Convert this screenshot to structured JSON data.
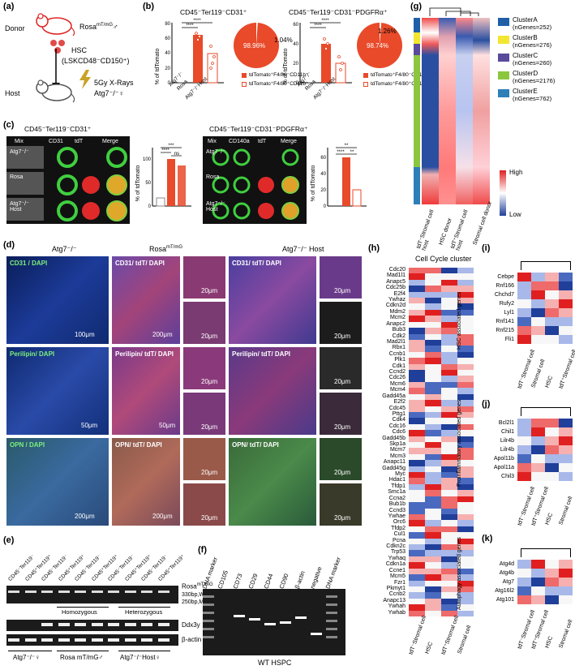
{
  "panels": {
    "a": "(a)",
    "b": "(b)",
    "c": "(c)",
    "d": "(d)",
    "e": "(e)",
    "f": "(f)",
    "g": "(g)",
    "h": "(h)",
    "i": "(i)",
    "j": "(j)",
    "k": "(k)"
  },
  "a": {
    "donor": "Donor",
    "donor_strain": "Rosa",
    "donor_sup": "mT/mG",
    "donor_sex": "♂",
    "hsc": "HSC",
    "hsc_markers": "(LSKCD48⁻CD150⁺)",
    "host": "Host",
    "xray": "5Gy X-Rays",
    "host_strain": "Atg7⁻/⁻♀"
  },
  "b": {
    "title1": "CD45⁻Ter119⁻CD31⁺",
    "title2": "CD45⁻Ter119⁻CD31⁻PDGFRα⁺",
    "ylabel": "% of tdTomato",
    "stars": "****",
    "xcats": [
      "Atg7⁻/⁻",
      "Rosa",
      "Atg7⁻/⁻Host"
    ],
    "pie1_big": "98.96%",
    "pie1_small": "1.04%",
    "pie2_big": "98.74%",
    "pie2_small": "1.26%",
    "legend_a": "tdTomato⁺F4/80⁻CD11b⁻",
    "legend_b": "tdTomato⁺F4/80⁺CD11b⁺"
  },
  "c": {
    "title1": "CD45⁻Ter119⁻CD31⁺",
    "title2": "CD45⁻Ter119⁻CD31⁻PDGFRα⁺",
    "cols1": [
      "Mix",
      "CD31",
      "tdT",
      "Merge"
    ],
    "cols2": [
      "Mix",
      "CD140a",
      "tdT",
      "Merge"
    ],
    "rows": [
      "Atg7⁻/⁻",
      "Rosa",
      "Atg7⁻/⁻ Host"
    ],
    "ylabel": "% of tdTomato",
    "sig1": [
      "***",
      "****",
      "ns"
    ],
    "sig2": [
      "**",
      "****",
      "**"
    ]
  },
  "d": {
    "col1": "Atg7⁻/⁻",
    "col2": "Rosa",
    "col2_sup": "mT/mG",
    "col3": "Atg7⁻/⁻ Host",
    "row1": "CD31 / DAPI",
    "row2": "Perilipin/ DAPI",
    "row3": "OPN / DAPI",
    "row1b": "CD31/ tdT/ DAPI",
    "row2b": "Perilipin/ tdT/ DAPI",
    "row3b": "OPN/ tdT/ DAPI",
    "scales": [
      "100μm",
      "200μm",
      "20μm",
      "20μm",
      "20μm",
      "20μm",
      "50μm",
      "50μm",
      "20μm",
      "20μm",
      "20μm",
      "20μm",
      "200μm",
      "200μm",
      "20μm",
      "20μm",
      "20μm",
      "20μm"
    ]
  },
  "e": {
    "lanes": [
      "CD45⁻Ter119⁻",
      "CD45⁺Ter119⁺",
      "CD45⁻Ter119⁻",
      "CD45⁺Ter119⁺",
      "CD45⁻Ter119⁻",
      "CD45⁺Ter119⁺",
      "CD45⁻Ter119⁻",
      "CD45⁺Ter119⁺",
      "CD45⁻Ter119⁻",
      "CD45⁺Ter119⁺"
    ],
    "gene1": "Rosa",
    "gene1_sup": "mT/mG",
    "wt": "330bp,WT",
    "mut": "250bp,Mut",
    "homo": "Homozygous",
    "hetero": "Heterozygous",
    "gene2": "Ddx3y",
    "gene3": "β-actin",
    "groups": [
      "Atg7⁻/⁻♀",
      "Rosa mT/mG♂",
      "Atg7⁻/⁻Host♀"
    ]
  },
  "f": {
    "lanes": [
      "DNA marker",
      "CD105",
      "CD73",
      "CD29",
      "CD44",
      "CD90",
      "β-actin",
      "negative",
      "DNA marker"
    ],
    "caption": "WT HSPC"
  },
  "g": {
    "clusters": [
      {
        "name": "ClusterA",
        "count": "(nGenes=252)",
        "color": "#1f5fa8"
      },
      {
        "name": "ClusterB",
        "count": "(nGenes=276)",
        "color": "#f2e630"
      },
      {
        "name": "ClusterC",
        "count": "(nGenes=260)",
        "color": "#5a4a9c"
      },
      {
        "name": "ClusterD",
        "count": "(nGenes=2176)",
        "color": "#8cc63f"
      },
      {
        "name": "ClusterE",
        "count": "(nGenes=762)",
        "color": "#2d7fb8"
      }
    ],
    "high": "High",
    "low": "Low",
    "cols": [
      "tdT⁻Stromal cell host",
      "HSC donor",
      "tdT⁺Stromal cell host",
      "Stromal cell donor"
    ]
  },
  "h": {
    "title": "Cell Cycle cluster",
    "genes": [
      "Cdc20",
      "Mad1l1",
      "Anapc5",
      "Cdc25b",
      "E2f4",
      "Ywhaz",
      "Cdkn2d",
      "Mdm2",
      "Mcm2",
      "Anapc2",
      "Bub3",
      "Cdk2",
      "Mad2l1",
      "Rbx1",
      "Ccnb1",
      "Plk1",
      "Cdk1",
      "Ccnd2",
      "Cdc26",
      "Mcm6",
      "Mcm4",
      "Gadd45a",
      "E2f2",
      "Cdc45",
      "Pttg1",
      "Cdk4",
      "Cdc16",
      "Cdc6",
      "Gadd45b",
      "Skp1a",
      "Mcm7",
      "Mcm3",
      "Anapc11",
      "Gadd45g",
      "Myc",
      "Hdac1",
      "Tfdp1",
      "Smc1a",
      "Ccna2",
      "Bub1b",
      "Ccnd3",
      "Ywhae",
      "Orc6",
      "Tfdp2",
      "Cul1",
      "Pcna",
      "Cdkn2c",
      "Trp53",
      "Ywhaq",
      "Cdkn1a",
      "Ccne1",
      "Mcm5",
      "Fzr1",
      "Pkmyt1",
      "Ccnb2",
      "Anapc13",
      "Ywhah",
      "Ywhab"
    ],
    "cols": [
      "tdT⁻Stromal cell",
      "HSC",
      "tdT⁺Stromal cell",
      "Stromal cell"
    ]
  },
  "i": {
    "ylabel": "HSC associated genes",
    "genes": [
      "Cebpe",
      "Rnf166",
      "Chchd7",
      "Rufy2",
      "Lyl1",
      "Rnf141",
      "Rnf215",
      "Fli1"
    ],
    "cols": [
      "tdT⁻Stromal cell",
      "Stromal cell",
      "HSC",
      "tdT⁺Stromal cell"
    ]
  },
  "j": {
    "ylabel": "Proinflammatory associated genes",
    "genes": [
      "Bcl2l1",
      "Chil1",
      "Lilr4b",
      "Lilr4b",
      "Apol11b",
      "Apol11a",
      "Chil3"
    ],
    "cols": [
      "tdT⁻Stromal cell",
      "tdT⁺Stromal cell",
      "HSC",
      "Stromal cell"
    ]
  },
  "k": {
    "ylabel": "Autophagy associated genes",
    "genes": [
      "Atg4d",
      "Atg4b",
      "Atg7",
      "Atg16l2",
      "Atg101"
    ],
    "cols": [
      "tdT⁻Stromal cell",
      "tdT⁺Stromal cell",
      "HSC",
      "Stromal cell"
    ]
  }
}
